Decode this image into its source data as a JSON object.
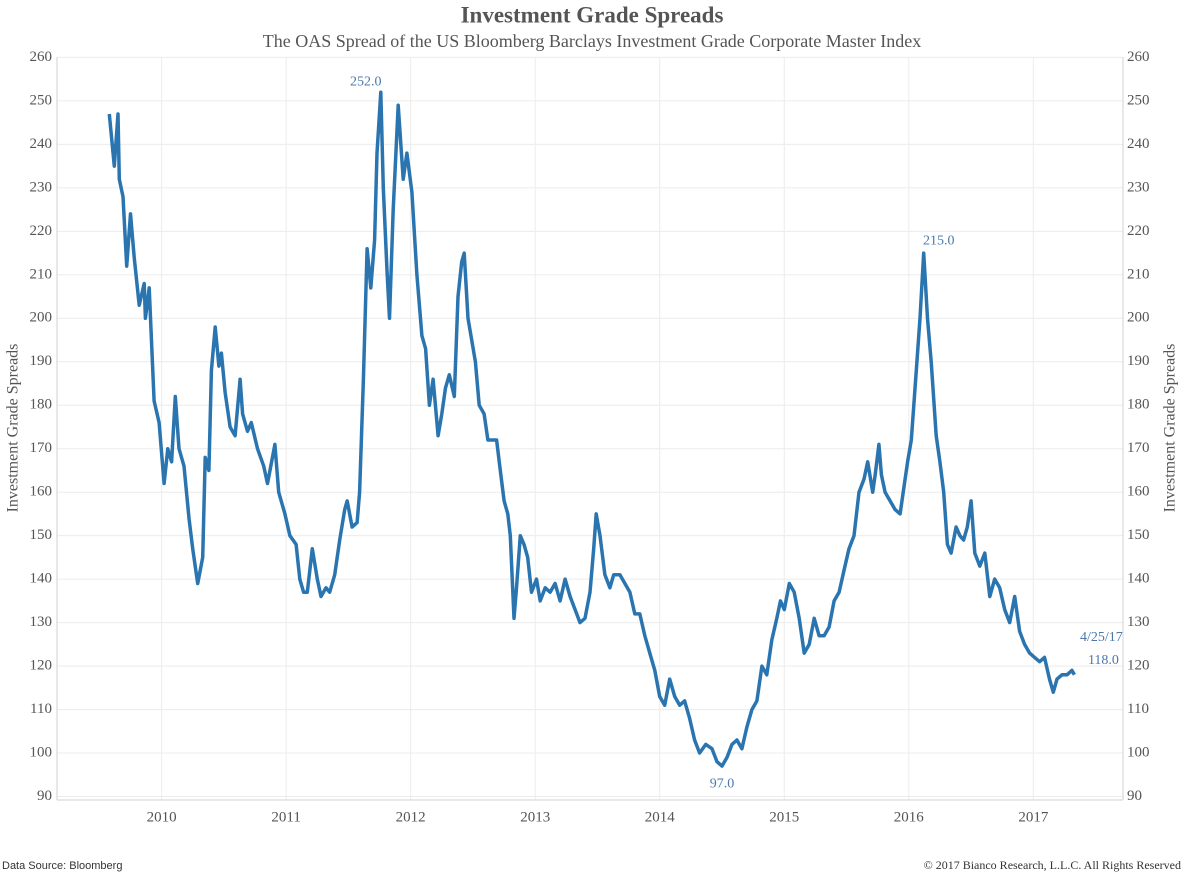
{
  "chart_data": {
    "type": "line",
    "title": "Investment Grade Spreads",
    "subtitle": "The OAS Spread of the US Bloomberg Barclays Investment Grade Corporate Master Index",
    "y_label": "Investment Grade Spreads",
    "y2_label": "Investment Grade Spreads",
    "source": "Data Source: Bloomberg",
    "copyright": "© 2017 Bianco Research, L.L.C. All Rights Reserved",
    "color": "#2a75b0",
    "grid": true,
    "xlim": [
      2009.16,
      2017.72
    ],
    "xticks": [
      2010,
      2011,
      2012,
      2013,
      2014,
      2015,
      2016,
      2017
    ],
    "ylim": [
      89.2,
      260.1
    ],
    "yticks": [
      90,
      100,
      110,
      120,
      130,
      140,
      150,
      160,
      170,
      180,
      190,
      200,
      210,
      220,
      230,
      240,
      250,
      260
    ],
    "x": [
      2009.58,
      2009.62,
      2009.65,
      2009.66,
      2009.69,
      2009.72,
      2009.75,
      2009.78,
      2009.82,
      2009.86,
      2009.87,
      2009.9,
      2009.94,
      2009.98,
      2010.02,
      2010.05,
      2010.08,
      2010.11,
      2010.14,
      2010.18,
      2010.22,
      2010.25,
      2010.29,
      2010.33,
      2010.35,
      2010.38,
      2010.4,
      2010.43,
      2010.46,
      2010.48,
      2010.51,
      2010.55,
      2010.59,
      2010.63,
      2010.65,
      2010.69,
      2010.72,
      2010.77,
      2010.82,
      2010.85,
      2010.91,
      2010.94,
      2010.99,
      2011.03,
      2011.08,
      2011.11,
      2011.14,
      2011.17,
      2011.21,
      2011.25,
      2011.28,
      2011.32,
      2011.35,
      2011.39,
      2011.43,
      2011.47,
      2011.49,
      2011.53,
      2011.57,
      2011.59,
      2011.62,
      2011.65,
      2011.68,
      2011.71,
      2011.73,
      2011.76,
      2011.78,
      2011.81,
      2011.83,
      2011.86,
      2011.9,
      2011.94,
      2011.97,
      2012.01,
      2012.05,
      2012.09,
      2012.12,
      2012.15,
      2012.18,
      2012.22,
      2012.25,
      2012.28,
      2012.31,
      2012.35,
      2012.38,
      2012.41,
      2012.43,
      2012.46,
      2012.49,
      2012.52,
      2012.55,
      2012.59,
      2012.62,
      2012.66,
      2012.69,
      2012.72,
      2012.75,
      2012.78,
      2012.8,
      2012.83,
      2012.85,
      2012.88,
      2012.91,
      2012.94,
      2012.97,
      2013.01,
      2013.04,
      2013.08,
      2013.12,
      2013.16,
      2013.2,
      2013.24,
      2013.28,
      2013.32,
      2013.36,
      2013.4,
      2013.44,
      2013.47,
      2013.49,
      2013.52,
      2013.56,
      2013.6,
      2013.63,
      2013.68,
      2013.72,
      2013.76,
      2013.8,
      2013.84,
      2013.88,
      2013.92,
      2013.96,
      2014.0,
      2014.04,
      2014.08,
      2014.12,
      2014.16,
      2014.2,
      2014.24,
      2014.28,
      2014.32,
      2014.37,
      2014.42,
      2014.46,
      2014.5,
      2014.54,
      2014.58,
      2014.62,
      2014.66,
      2014.7,
      2014.74,
      2014.78,
      2014.82,
      2014.86,
      2014.9,
      2014.94,
      2014.97,
      2015.0,
      2015.04,
      2015.08,
      2015.12,
      2015.16,
      2015.2,
      2015.24,
      2015.28,
      2015.32,
      2015.36,
      2015.4,
      2015.44,
      2015.48,
      2015.52,
      2015.56,
      2015.6,
      2015.64,
      2015.67,
      2015.71,
      2015.73,
      2015.76,
      2015.78,
      2015.81,
      2015.85,
      2015.89,
      2015.93,
      2015.97,
      2015.99,
      2016.02,
      2016.06,
      2016.09,
      2016.12,
      2016.15,
      2016.18,
      2016.22,
      2016.25,
      2016.28,
      2016.31,
      2016.34,
      2016.38,
      2016.41,
      2016.44,
      2016.47,
      2016.5,
      2016.53,
      2016.57,
      2016.61,
      2016.65,
      2016.69,
      2016.73,
      2016.77,
      2016.81,
      2016.85,
      2016.89,
      2016.93,
      2016.97,
      2017.01,
      2017.05,
      2017.09,
      2017.13,
      2017.16,
      2017.19,
      2017.23,
      2017.27,
      2017.31,
      2017.33
    ],
    "values": [
      247,
      235,
      247,
      232,
      228,
      212,
      224,
      214,
      203,
      208,
      200,
      207,
      181,
      176,
      162,
      170,
      167,
      182,
      170,
      166,
      154,
      147,
      139,
      145,
      168,
      165,
      188,
      198,
      189,
      192,
      183,
      175,
      173,
      186,
      178,
      174,
      176,
      170,
      166,
      162,
      171,
      160,
      155,
      150,
      148,
      140,
      137,
      137,
      147,
      140,
      136,
      138,
      137,
      141,
      149,
      156,
      158,
      152,
      153,
      160,
      186,
      216,
      207,
      218,
      238,
      252,
      230,
      211,
      200,
      225,
      249,
      232,
      238,
      229,
      210,
      196,
      193,
      180,
      186,
      173,
      178,
      184,
      187,
      182,
      205,
      213,
      215,
      200,
      195,
      190,
      180,
      178,
      172,
      172,
      172,
      165,
      158,
      155,
      150,
      131,
      138,
      150,
      148,
      145,
      137,
      140,
      135,
      138,
      137,
      139,
      135,
      140,
      136,
      133,
      130,
      131,
      137,
      147,
      155,
      150,
      141,
      138,
      141,
      141,
      139,
      137,
      132,
      132,
      127,
      123,
      119,
      113,
      111,
      117,
      113,
      111,
      112,
      108,
      103,
      100,
      102,
      101,
      98,
      97,
      99,
      102,
      103,
      101,
      106,
      110,
      112,
      120,
      118,
      126,
      131,
      135,
      133,
      139,
      137,
      131,
      123,
      125,
      131,
      127,
      127,
      129,
      135,
      137,
      142,
      147,
      150,
      160,
      163,
      167,
      160,
      164,
      171,
      164,
      160,
      158,
      156,
      155,
      163,
      167,
      172,
      188,
      200,
      215,
      200,
      190,
      173,
      167,
      160,
      148,
      146,
      152,
      150,
      149,
      152,
      158,
      146,
      143,
      146,
      136,
      140,
      138,
      133,
      130,
      136,
      128,
      125,
      123,
      122,
      121,
      122,
      117,
      114,
      117,
      118,
      118,
      119,
      118
    ],
    "annotations": [
      {
        "x": 2011.76,
        "y": 252,
        "label": "252.0"
      },
      {
        "x": 2016.12,
        "y": 215,
        "label": "215.0"
      },
      {
        "x": 2014.5,
        "y": 97,
        "label": "97.0"
      },
      {
        "x": 2017.33,
        "y": 118,
        "label": "118.0",
        "date": "4/25/17"
      }
    ]
  }
}
